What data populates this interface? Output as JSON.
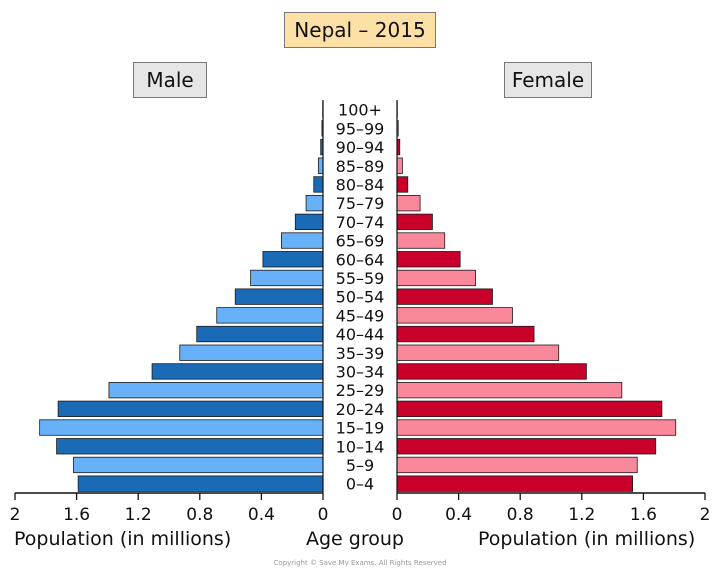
{
  "chart_data": {
    "type": "bar",
    "orientation": "horizontal",
    "layout": "population-pyramid",
    "title": "Nepal – 2015",
    "left_label": "Male",
    "right_label": "Female",
    "center_axis_title": "Age group",
    "xlabel_left": "Population (in millions)",
    "xlabel_right": "Population (in millions)",
    "xlim": [
      0,
      2
    ],
    "x_ticks_left": [
      "2",
      "1.6",
      "1.2",
      "0.8",
      "0.4",
      "0"
    ],
    "x_ticks_right": [
      "0",
      "0.4",
      "0.8",
      "1.2",
      "1.6",
      "2"
    ],
    "categories": [
      "0–4",
      "5–9",
      "10–14",
      "15–19",
      "20–24",
      "25–29",
      "30–34",
      "35–39",
      "40–44",
      "45–49",
      "50–54",
      "55–59",
      "60–64",
      "65–69",
      "70–74",
      "75–79",
      "80–84",
      "85–89",
      "90–94",
      "95–99",
      "100+"
    ],
    "series": [
      {
        "name": "Male",
        "values": [
          1.59,
          1.62,
          1.73,
          1.84,
          1.72,
          1.39,
          1.11,
          0.93,
          0.82,
          0.69,
          0.57,
          0.47,
          0.39,
          0.27,
          0.18,
          0.11,
          0.06,
          0.03,
          0.015,
          0.007,
          0.002
        ],
        "colors": [
          "#1a6ab5",
          "#66b1f7"
        ]
      },
      {
        "name": "Female",
        "values": [
          1.53,
          1.56,
          1.68,
          1.81,
          1.72,
          1.46,
          1.23,
          1.05,
          0.89,
          0.75,
          0.62,
          0.51,
          0.41,
          0.31,
          0.23,
          0.15,
          0.07,
          0.035,
          0.018,
          0.008,
          0.002
        ],
        "colors": [
          "#c8002a",
          "#f8889a"
        ]
      }
    ],
    "grid": false
  },
  "copyright": "Copyright © Save My Exams. All Rights Reserved"
}
